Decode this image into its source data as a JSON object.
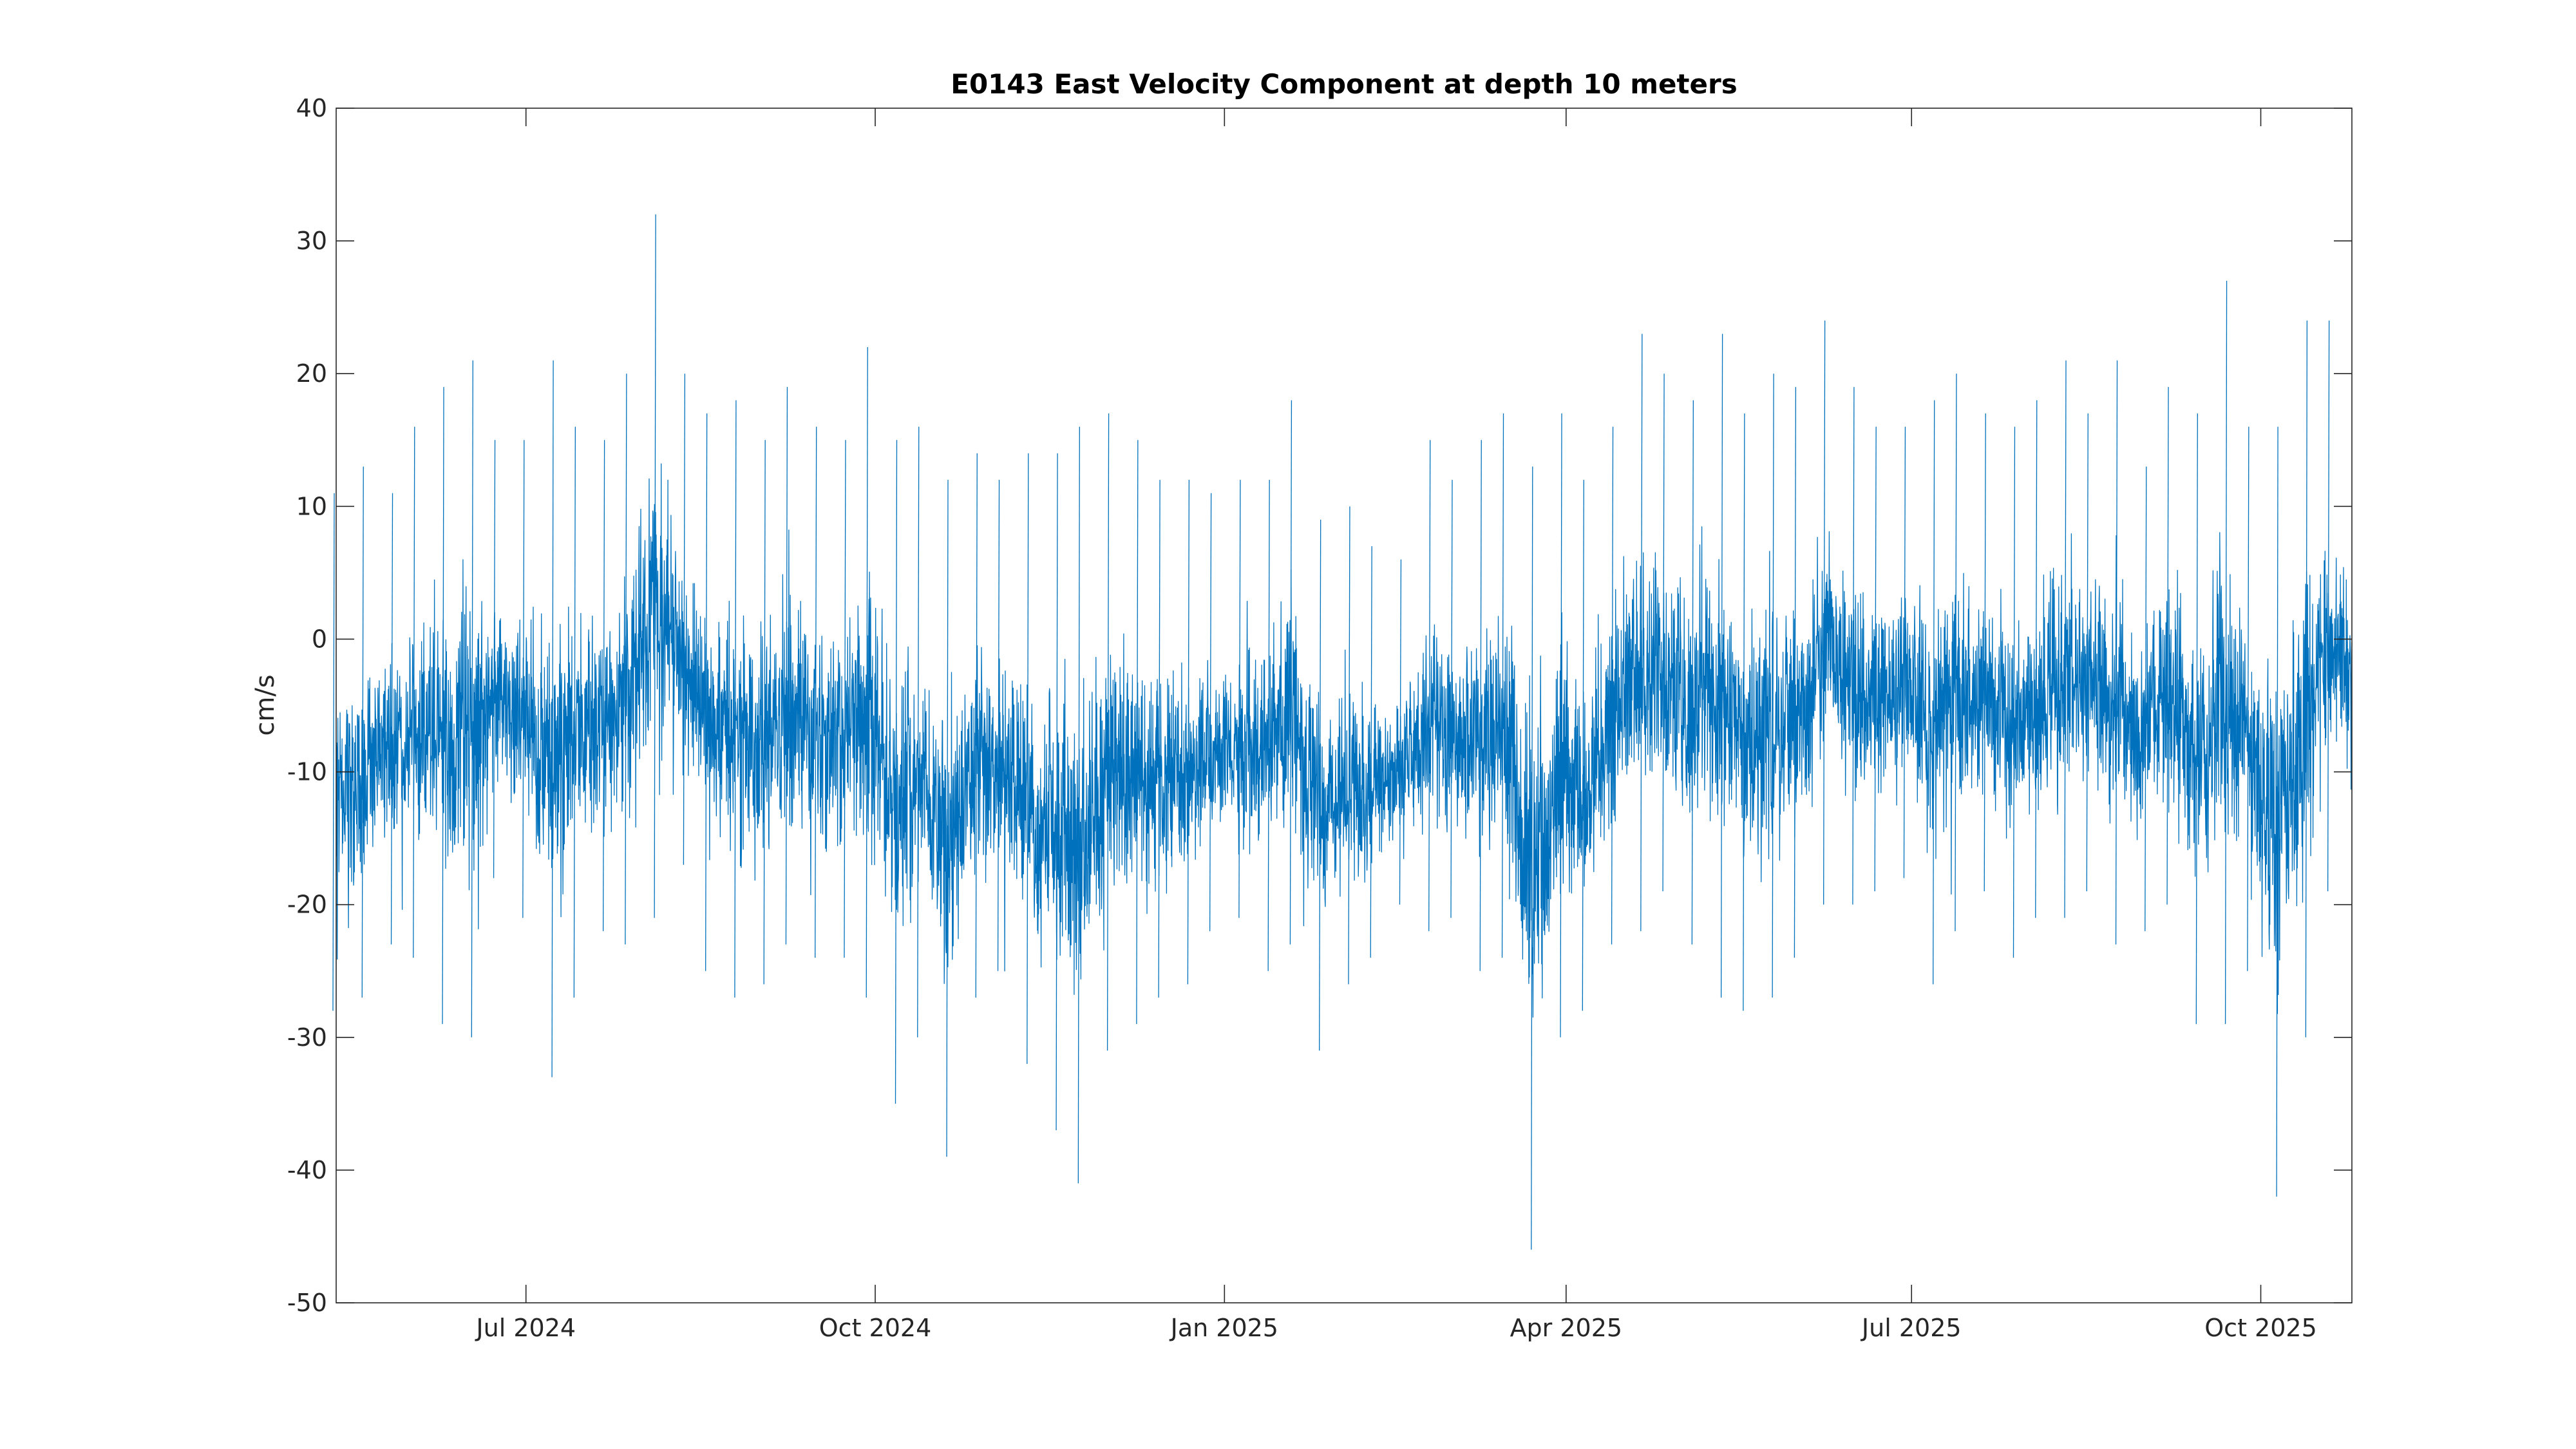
{
  "chart_data": {
    "type": "line",
    "title": "E0143 East Velocity Component at depth 10 meters",
    "xlabel": "",
    "ylabel": "cm/s",
    "xlim": [
      "2024-05-12",
      "2025-10-25"
    ],
    "ylim": [
      -50,
      40
    ],
    "grid": false,
    "legend": "none",
    "xticks": [
      {
        "value": "2024-07-01",
        "label": "Jul 2024"
      },
      {
        "value": "2024-10-01",
        "label": "Oct 2024"
      },
      {
        "value": "2025-01-01",
        "label": "Jan 2025"
      },
      {
        "value": "2025-04-01",
        "label": "Apr 2025"
      },
      {
        "value": "2025-07-01",
        "label": "Jul 2025"
      },
      {
        "value": "2025-10-01",
        "label": "Oct 2025"
      }
    ],
    "yticks": [
      {
        "value": 40,
        "label": "40"
      },
      {
        "value": 30,
        "label": "30"
      },
      {
        "value": 20,
        "label": "20"
      },
      {
        "value": 10,
        "label": "10"
      },
      {
        "value": 0,
        "label": "0"
      },
      {
        "value": -10,
        "label": "-10"
      },
      {
        "value": -20,
        "label": "-20"
      },
      {
        "value": -30,
        "label": "-30"
      },
      {
        "value": -40,
        "label": "-40"
      },
      {
        "value": -50,
        "label": "-50"
      }
    ],
    "series_color": "#0072bd",
    "series": [
      {
        "x": [
          "2024-05-12",
          "2024-05-19",
          "2024-05-26",
          "2024-06-02",
          "2024-06-09",
          "2024-06-16",
          "2024-06-23",
          "2024-06-30",
          "2024-07-07",
          "2024-07-14",
          "2024-07-21",
          "2024-07-28",
          "2024-08-04",
          "2024-08-11",
          "2024-08-18",
          "2024-08-25",
          "2024-09-01",
          "2024-09-08",
          "2024-09-15",
          "2024-09-22",
          "2024-09-29",
          "2024-10-06",
          "2024-10-13",
          "2024-10-20",
          "2024-10-27",
          "2024-11-03",
          "2024-11-10",
          "2024-11-17",
          "2024-11-24",
          "2024-12-01",
          "2024-12-08",
          "2024-12-15",
          "2024-12-22",
          "2024-12-29",
          "2025-01-05",
          "2025-01-12",
          "2025-01-19",
          "2025-01-26",
          "2025-02-02",
          "2025-02-09",
          "2025-02-16",
          "2025-02-23",
          "2025-03-02",
          "2025-03-09",
          "2025-03-16",
          "2025-03-23",
          "2025-03-30",
          "2025-04-06",
          "2025-04-13",
          "2025-04-20",
          "2025-04-27",
          "2025-05-04",
          "2025-05-11",
          "2025-05-18",
          "2025-05-25",
          "2025-06-01",
          "2025-06-08",
          "2025-06-15",
          "2025-06-22",
          "2025-06-29",
          "2025-07-06",
          "2025-07-13",
          "2025-07-20",
          "2025-07-27",
          "2025-08-03",
          "2025-08-10",
          "2025-08-17",
          "2025-08-24",
          "2025-08-31",
          "2025-09-07",
          "2025-09-14",
          "2025-09-21",
          "2025-09-28",
          "2025-10-05",
          "2025-10-12",
          "2025-10-19"
        ],
        "low": [
          -28,
          -27,
          -23,
          -24,
          -29,
          -30,
          -18,
          -21,
          -33,
          -27,
          -22,
          -23,
          -21,
          -17,
          -25,
          -27,
          -26,
          -23,
          -24,
          -24,
          -27,
          -35,
          -30,
          -39,
          -27,
          -25,
          -32,
          -37,
          -41,
          -31,
          -29,
          -27,
          -26,
          -22,
          -21,
          -25,
          -23,
          -31,
          -26,
          -24,
          -20,
          -22,
          -21,
          -25,
          -24,
          -46,
          -30,
          -28,
          -23,
          -22,
          -19,
          -23,
          -27,
          -28,
          -27,
          -24,
          -20,
          -20,
          -19,
          -18,
          -26,
          -22,
          -19,
          -24,
          -21,
          -21,
          -19,
          -23,
          -22,
          -20,
          -29,
          -29,
          -25,
          -42,
          -30,
          -19
        ],
        "high": [
          11,
          13,
          11,
          16,
          19,
          21,
          15,
          15,
          21,
          16,
          15,
          20,
          32,
          20,
          17,
          18,
          15,
          19,
          16,
          15,
          22,
          15,
          16,
          12,
          14,
          12,
          14,
          14,
          16,
          17,
          15,
          12,
          12,
          11,
          12,
          12,
          18,
          9,
          10,
          7,
          6,
          15,
          12,
          15,
          17,
          13,
          17,
          12,
          16,
          23,
          20,
          18,
          23,
          17,
          20,
          19,
          24,
          19,
          16,
          16,
          18,
          20,
          17,
          16,
          18,
          21,
          17,
          21,
          13,
          19,
          17,
          27,
          16,
          16,
          24,
          24
        ]
      }
    ]
  }
}
